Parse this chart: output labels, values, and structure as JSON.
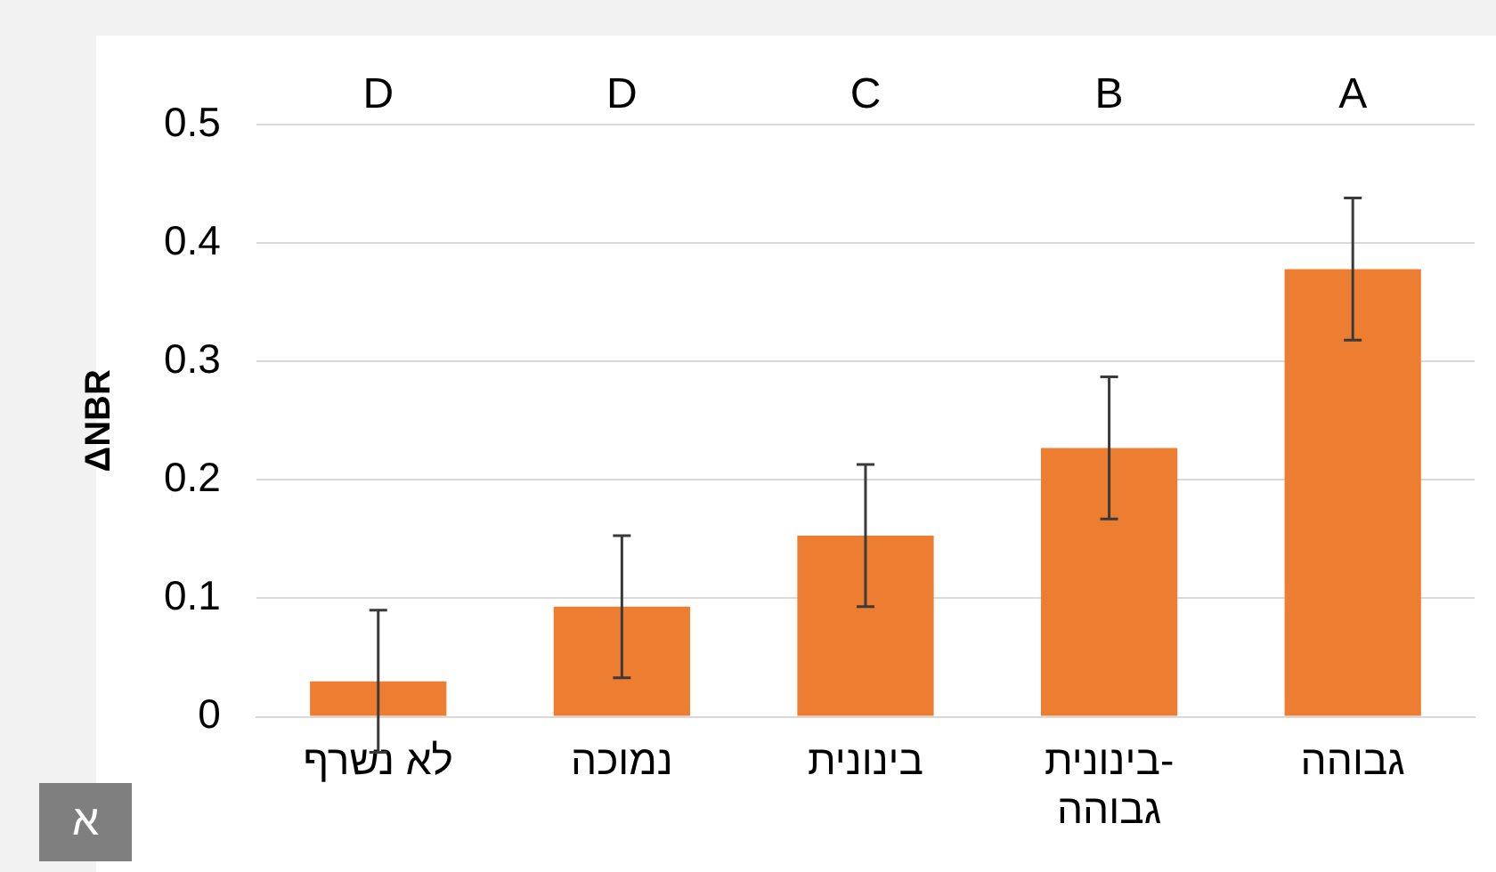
{
  "chart_data": {
    "type": "bar",
    "ylabel": "ΔNBR",
    "categories": [
      "לא נשרף",
      "נמוכה",
      "בינונית",
      "בינונית-גבוהה",
      "גבוהה"
    ],
    "values": [
      0.03,
      0.093,
      0.153,
      0.227,
      0.378
    ],
    "errors": [
      0.06,
      0.06,
      0.06,
      0.06,
      0.06
    ],
    "color": "#ed7d31",
    "ylim": [
      0,
      0.5
    ],
    "yticks": [
      0,
      0.1,
      0.2,
      0.3,
      0.4,
      0.5
    ],
    "grid": "y",
    "legend": false,
    "annotations": [
      "D",
      "D",
      "C",
      "B",
      "A",
      "א"
    ]
  }
}
